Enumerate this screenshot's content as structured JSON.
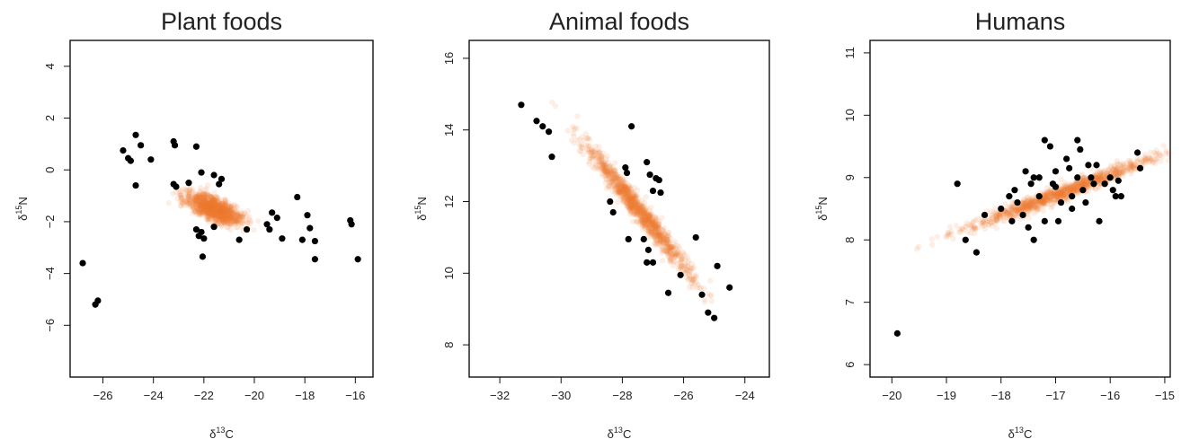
{
  "chart_data": [
    {
      "type": "scatter",
      "title": "Plant foods",
      "xlabel": {
        "prefix": "δ",
        "sup": "13",
        "suffix": "C"
      },
      "ylabel": {
        "prefix": "δ",
        "sup": "15",
        "suffix": "N"
      },
      "xlim": [
        -27.3,
        -15.3
      ],
      "ylim": [
        -8.0,
        5.0
      ],
      "xticks": [
        -26,
        -24,
        -22,
        -20,
        -18,
        -16
      ],
      "yticks": [
        -6,
        -4,
        -2,
        0,
        2,
        4
      ],
      "grid": false,
      "cloud": {
        "center": [
          -21.6,
          -1.5
        ],
        "spread": [
          0.55,
          0.22
        ],
        "slope": -0.35,
        "color": "#f07a35"
      },
      "series": [
        {
          "color": "#000000",
          "points": [
            [
              -26.8,
              -3.6
            ],
            [
              -26.3,
              -5.2
            ],
            [
              -26.2,
              -5.05
            ],
            [
              -25.2,
              0.75
            ],
            [
              -25.0,
              0.45
            ],
            [
              -24.9,
              0.35
            ],
            [
              -24.7,
              1.35
            ],
            [
              -24.5,
              0.95
            ],
            [
              -24.1,
              0.4
            ],
            [
              -24.7,
              -0.6
            ],
            [
              -23.2,
              1.1
            ],
            [
              -23.15,
              0.95
            ],
            [
              -23.2,
              -0.55
            ],
            [
              -23.1,
              -0.65
            ],
            [
              -22.6,
              -0.5
            ],
            [
              -22.3,
              0.9
            ],
            [
              -22.1,
              -0.1
            ],
            [
              -21.6,
              -0.2
            ],
            [
              -21.3,
              -0.35
            ],
            [
              -21.4,
              -0.55
            ],
            [
              -22.3,
              -2.3
            ],
            [
              -22.1,
              -2.4
            ],
            [
              -22.2,
              -2.55
            ],
            [
              -22.0,
              -2.65
            ],
            [
              -22.05,
              -3.35
            ],
            [
              -21.6,
              -2.2
            ],
            [
              -20.6,
              -2.7
            ],
            [
              -20.3,
              -2.3
            ],
            [
              -19.5,
              -2.1
            ],
            [
              -19.4,
              -2.3
            ],
            [
              -19.3,
              -1.65
            ],
            [
              -19.1,
              -1.85
            ],
            [
              -18.9,
              -2.65
            ],
            [
              -18.3,
              -1.05
            ],
            [
              -18.1,
              -2.7
            ],
            [
              -17.9,
              -1.75
            ],
            [
              -17.8,
              -2.25
            ],
            [
              -17.6,
              -2.75
            ],
            [
              -17.6,
              -3.45
            ],
            [
              -16.2,
              -1.95
            ],
            [
              -16.15,
              -2.1
            ],
            [
              -15.9,
              -3.45
            ]
          ]
        }
      ]
    },
    {
      "type": "scatter",
      "title": "Animal foods",
      "xlabel": {
        "prefix": "δ",
        "sup": "13",
        "suffix": "C"
      },
      "ylabel": {
        "prefix": "δ",
        "sup": "15",
        "suffix": "N"
      },
      "xlim": [
        -33.0,
        -23.2
      ],
      "ylim": [
        7.1,
        16.5
      ],
      "xticks": [
        -32,
        -30,
        -28,
        -26,
        -24
      ],
      "yticks": [
        8,
        10,
        12,
        14,
        16
      ],
      "grid": false,
      "cloud": {
        "center": [
          -27.5,
          11.8
        ],
        "spread": [
          0.85,
          0.18
        ],
        "slope": -1.05,
        "color": "#f07a35"
      },
      "series": [
        {
          "color": "#000000",
          "points": [
            [
              -31.3,
              14.7
            ],
            [
              -30.8,
              14.25
            ],
            [
              -30.6,
              14.1
            ],
            [
              -30.4,
              13.95
            ],
            [
              -30.3,
              13.25
            ],
            [
              -28.4,
              12.0
            ],
            [
              -28.3,
              11.7
            ],
            [
              -27.9,
              12.95
            ],
            [
              -27.85,
              12.8
            ],
            [
              -27.7,
              14.1
            ],
            [
              -27.2,
              13.1
            ],
            [
              -27.1,
              12.75
            ],
            [
              -26.9,
              12.65
            ],
            [
              -26.8,
              12.6
            ],
            [
              -27.0,
              12.3
            ],
            [
              -26.75,
              12.25
            ],
            [
              -27.8,
              10.95
            ],
            [
              -27.3,
              10.95
            ],
            [
              -27.2,
              10.3
            ],
            [
              -27.0,
              10.3
            ],
            [
              -27.15,
              10.65
            ],
            [
              -26.5,
              9.45
            ],
            [
              -26.1,
              9.95
            ],
            [
              -25.6,
              11.0
            ],
            [
              -25.4,
              9.4
            ],
            [
              -25.2,
              8.9
            ],
            [
              -25.0,
              8.75
            ],
            [
              -24.9,
              10.2
            ],
            [
              -24.5,
              9.6
            ]
          ]
        }
      ]
    },
    {
      "type": "scatter",
      "title": "Humans",
      "xlabel": {
        "prefix": "δ",
        "sup": "13",
        "suffix": "C"
      },
      "ylabel": {
        "prefix": "δ",
        "sup": "15",
        "suffix": "N"
      },
      "xlim": [
        -20.4,
        -14.9
      ],
      "ylim": [
        5.8,
        11.2
      ],
      "xticks": [
        -20,
        -19,
        -18,
        -17,
        -16,
        -15
      ],
      "yticks": [
        6,
        7,
        8,
        9,
        10,
        11
      ],
      "grid": false,
      "cloud": {
        "center": [
          -16.9,
          8.75
        ],
        "spread": [
          0.85,
          0.06
        ],
        "slope": 0.33,
        "color": "#f07a35"
      },
      "series": [
        {
          "color": "#000000",
          "points": [
            [
              -19.9,
              6.5
            ],
            [
              -18.8,
              8.9
            ],
            [
              -18.65,
              8.0
            ],
            [
              -18.45,
              7.8
            ],
            [
              -18.3,
              8.4
            ],
            [
              -18.0,
              8.5
            ],
            [
              -17.8,
              8.3
            ],
            [
              -17.85,
              8.7
            ],
            [
              -17.75,
              8.8
            ],
            [
              -17.7,
              8.6
            ],
            [
              -17.6,
              8.4
            ],
            [
              -17.5,
              8.2
            ],
            [
              -17.55,
              9.1
            ],
            [
              -17.45,
              8.9
            ],
            [
              -17.4,
              9.0
            ],
            [
              -17.3,
              9.0
            ],
            [
              -17.3,
              8.7
            ],
            [
              -17.2,
              8.3
            ],
            [
              -17.4,
              8.0
            ],
            [
              -17.2,
              9.6
            ],
            [
              -17.1,
              9.5
            ],
            [
              -17.05,
              8.9
            ],
            [
              -17.0,
              9.1
            ],
            [
              -17.0,
              8.85
            ],
            [
              -16.9,
              8.6
            ],
            [
              -16.95,
              8.3
            ],
            [
              -16.8,
              9.3
            ],
            [
              -16.75,
              9.15
            ],
            [
              -16.7,
              8.7
            ],
            [
              -16.7,
              8.5
            ],
            [
              -16.6,
              9.6
            ],
            [
              -16.55,
              9.45
            ],
            [
              -16.6,
              9.0
            ],
            [
              -16.5,
              8.8
            ],
            [
              -16.45,
              8.6
            ],
            [
              -16.4,
              9.2
            ],
            [
              -16.35,
              9.0
            ],
            [
              -16.3,
              8.9
            ],
            [
              -16.25,
              9.2
            ],
            [
              -16.2,
              8.3
            ],
            [
              -16.1,
              8.9
            ],
            [
              -16.0,
              9.0
            ],
            [
              -15.95,
              8.8
            ],
            [
              -15.9,
              8.7
            ],
            [
              -15.85,
              8.95
            ],
            [
              -15.8,
              8.7
            ],
            [
              -15.5,
              9.4
            ],
            [
              -15.45,
              9.15
            ]
          ]
        }
      ]
    }
  ]
}
